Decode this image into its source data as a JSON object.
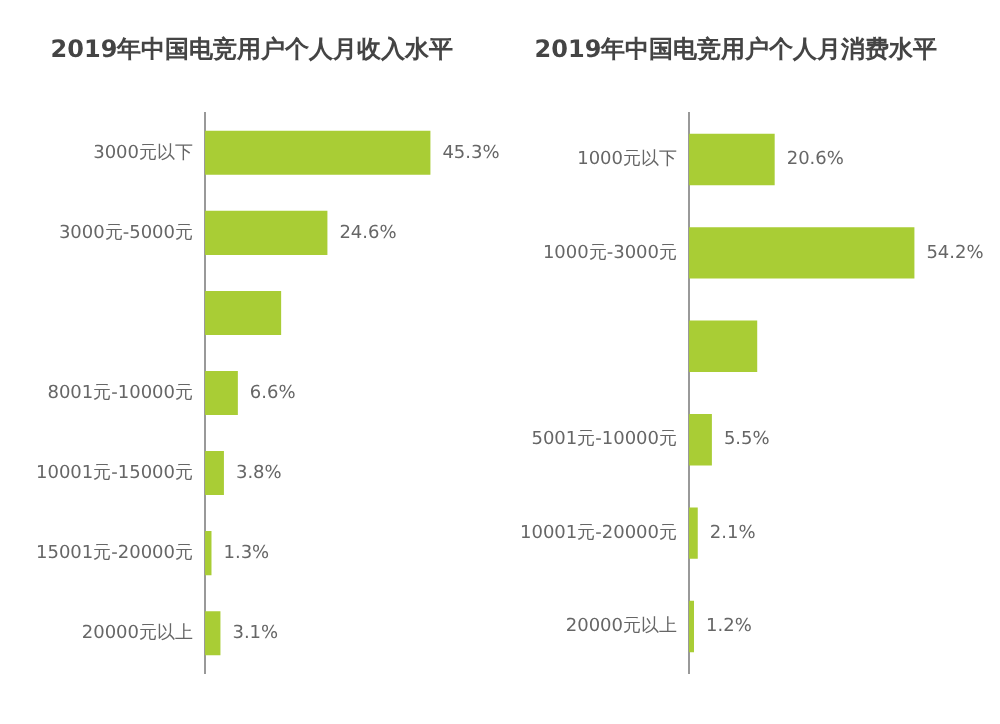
{
  "chart_data": [
    {
      "type": "bar",
      "orientation": "horizontal",
      "title": "2019年中国电竞用户个人月收入水平",
      "categories": [
        "3000元以下",
        "3000元-5000元",
        null,
        "8001元-10000元",
        "10001元-15000元",
        "15001元-20000元",
        "20000元以上"
      ],
      "values": [
        45.3,
        24.6,
        15.3,
        6.6,
        3.8,
        1.3,
        3.1
      ],
      "value_labels": [
        "45.3%",
        "24.6%",
        null,
        "6.6%",
        "3.8%",
        "1.3%",
        "3.1%"
      ],
      "color": "#a9cd35"
    },
    {
      "type": "bar",
      "orientation": "horizontal",
      "title": "2019年中国电竞用户个人月消费水平",
      "categories": [
        "1000元以下",
        "1000元-3000元",
        null,
        "5001元-10000元",
        "10001元-20000元",
        "20000元以上"
      ],
      "values": [
        20.6,
        54.2,
        16.4,
        5.5,
        2.1,
        1.2
      ],
      "value_labels": [
        "20.6%",
        "54.2%",
        null,
        "5.5%",
        "2.1%",
        "1.2%"
      ],
      "color": "#a9cd35"
    }
  ]
}
